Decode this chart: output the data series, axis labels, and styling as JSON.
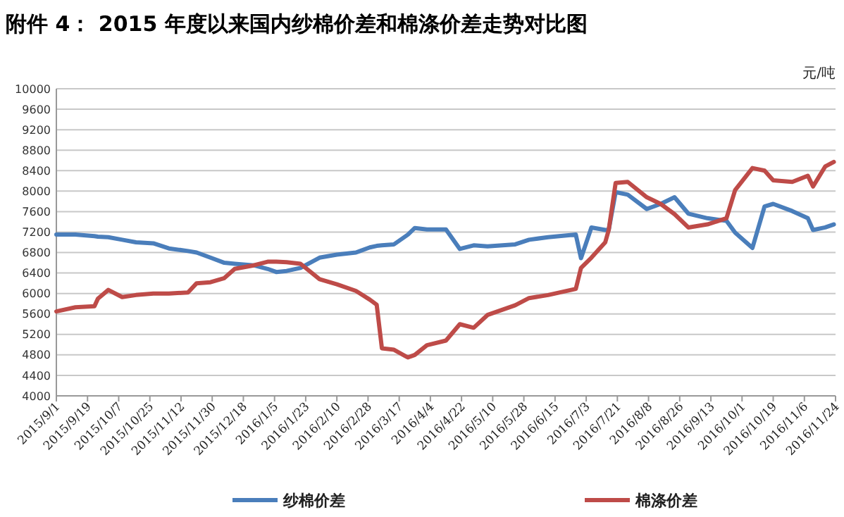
{
  "chart_data": {
    "type": "line",
    "title": "附件 4： 2015 年度以来国内纱棉价差和棉涤价差走势对比图",
    "ylabel": "元/吨",
    "x": [
      "2015-09-01",
      "2015-09-12",
      "2015-09-23",
      "2015-09-25",
      "2015-10-01",
      "2015-10-09",
      "2015-10-17",
      "2015-10-27",
      "2015-11-05",
      "2015-11-16",
      "2015-11-21",
      "2015-11-29",
      "2015-12-07",
      "2015-12-13",
      "2015-12-24",
      "2016-01-01",
      "2016-01-06",
      "2016-01-12",
      "2016-01-20",
      "2016-01-31",
      "2016-02-10",
      "2016-02-21",
      "2016-02-29",
      "2016-03-04",
      "2016-03-07",
      "2016-03-14",
      "2016-03-22",
      "2016-03-26",
      "2016-04-02",
      "2016-04-13",
      "2016-04-21",
      "2016-04-29",
      "2016-05-07",
      "2016-05-23",
      "2016-05-31",
      "2016-06-11",
      "2016-06-27",
      "2016-06-30",
      "2016-07-06",
      "2016-07-14",
      "2016-07-16",
      "2016-07-20",
      "2016-07-27",
      "2016-08-07",
      "2016-08-15",
      "2016-08-23",
      "2016-08-31",
      "2016-09-11",
      "2016-09-22",
      "2016-09-27",
      "2016-10-07",
      "2016-10-14",
      "2016-10-19",
      "2016-10-30",
      "2016-11-08",
      "2016-11-11",
      "2016-11-18",
      "2016-11-23"
    ],
    "series": [
      {
        "name": "纱棉价差",
        "color": "#4a7ebb",
        "values": [
          7150,
          7150,
          7120,
          7110,
          7100,
          7050,
          7000,
          6980,
          6880,
          6830,
          6800,
          6700,
          6600,
          6580,
          6550,
          6480,
          6420,
          6440,
          6500,
          6700,
          6760,
          6800,
          6900,
          6930,
          6940,
          6960,
          7150,
          7280,
          7250,
          7250,
          6870,
          6940,
          6920,
          6960,
          7050,
          7100,
          7150,
          6690,
          7290,
          7240,
          7240,
          7980,
          7930,
          7650,
          7750,
          7880,
          7560,
          7470,
          7420,
          7190,
          6890,
          7700,
          7750,
          7610,
          7470,
          7240,
          7290,
          7350
        ]
      },
      {
        "name": "棉涤价差",
        "color": "#be4b48",
        "values": [
          5650,
          5730,
          5750,
          5900,
          6070,
          5930,
          5970,
          6000,
          6000,
          6020,
          6200,
          6220,
          6300,
          6480,
          6550,
          6620,
          6620,
          6610,
          6580,
          6280,
          6180,
          6050,
          5880,
          5780,
          4930,
          4900,
          4750,
          4800,
          4990,
          5080,
          5400,
          5330,
          5580,
          5770,
          5910,
          5970,
          6090,
          6500,
          6700,
          7000,
          7240,
          8160,
          8180,
          7880,
          7750,
          7550,
          7290,
          7350,
          7470,
          8020,
          8450,
          8400,
          8210,
          8180,
          8300,
          8090,
          8480,
          8570
        ]
      }
    ],
    "xlim": [
      "2015-09-01",
      "2016-11-24"
    ],
    "xticks": [
      {
        "value": "2015-09-01",
        "label": "2015/9/1"
      },
      {
        "value": "2015-09-19",
        "label": "2015/9/19"
      },
      {
        "value": "2015-10-07",
        "label": "2015/10/7"
      },
      {
        "value": "2015-10-25",
        "label": "2015/10/25"
      },
      {
        "value": "2015-11-12",
        "label": "2015/11/12"
      },
      {
        "value": "2015-11-30",
        "label": "2015/11/30"
      },
      {
        "value": "2015-12-18",
        "label": "2015/12/18"
      },
      {
        "value": "2016-01-05",
        "label": "2016/1/5"
      },
      {
        "value": "2016-01-23",
        "label": "2016/1/23"
      },
      {
        "value": "2016-02-10",
        "label": "2016/2/10"
      },
      {
        "value": "2016-02-28",
        "label": "2016/2/28"
      },
      {
        "value": "2016-03-17",
        "label": "2016/3/17"
      },
      {
        "value": "2016-04-04",
        "label": "2016/4/4"
      },
      {
        "value": "2016-04-22",
        "label": "2016/4/22"
      },
      {
        "value": "2016-05-10",
        "label": "2016/5/10"
      },
      {
        "value": "2016-05-28",
        "label": "2016/5/28"
      },
      {
        "value": "2016-06-15",
        "label": "2016/6/15"
      },
      {
        "value": "2016-07-03",
        "label": "2016/7/3"
      },
      {
        "value": "2016-07-21",
        "label": "2016/7/21"
      },
      {
        "value": "2016-08-08",
        "label": "2016/8/8"
      },
      {
        "value": "2016-08-26",
        "label": "2016/8/26"
      },
      {
        "value": "2016-09-13",
        "label": "2016/9/13"
      },
      {
        "value": "2016-10-01",
        "label": "2016/10/1"
      },
      {
        "value": "2016-10-19",
        "label": "2016/10/19"
      },
      {
        "value": "2016-11-06",
        "label": "2016/11/6"
      },
      {
        "value": "2016-11-24",
        "label": "2016/11/24"
      }
    ],
    "ylim": [
      4000,
      10000
    ],
    "yticks": [
      4000,
      4400,
      4800,
      5200,
      5600,
      6000,
      6400,
      6800,
      7200,
      7600,
      8000,
      8400,
      8800,
      9200,
      9600,
      10000
    ],
    "grid": "y",
    "legend": "bottom",
    "marker": "none",
    "line_style": "solid"
  }
}
